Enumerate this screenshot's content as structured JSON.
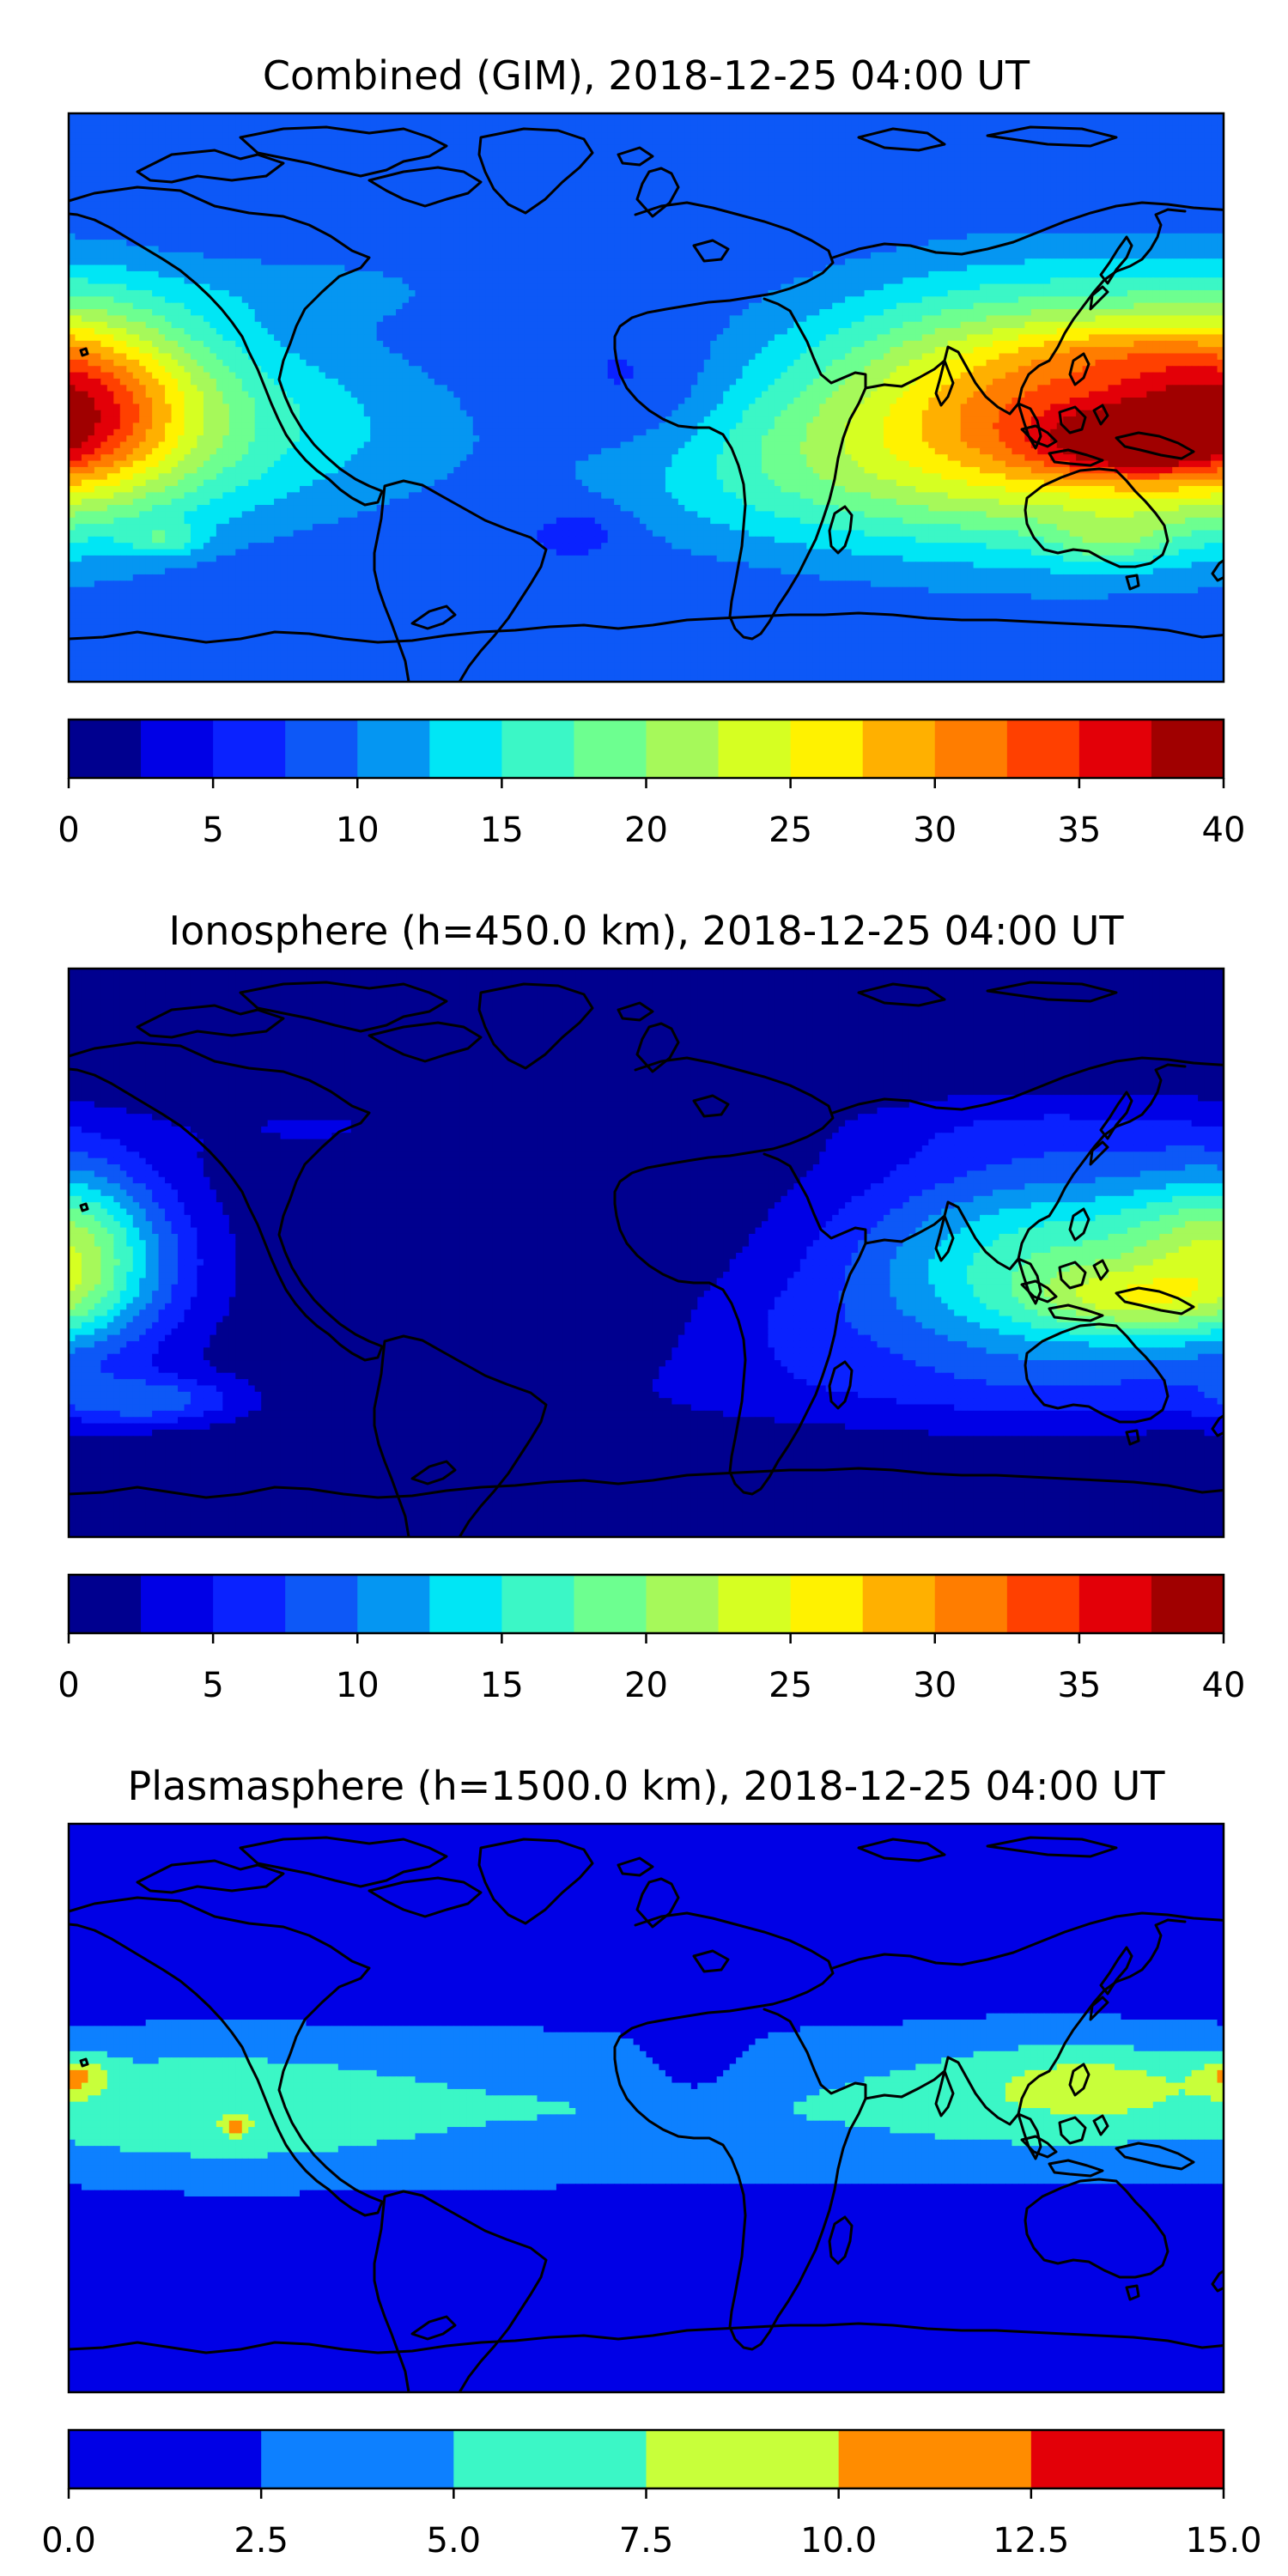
{
  "panels": [
    {
      "title": "Combined (GIM), 2018-12-25 04:00 UT",
      "colorbar": {
        "colors": [
          "#00008f",
          "#0000e6",
          "#0a22ff",
          "#0d58f7",
          "#0596f2",
          "#00e6f5",
          "#3bf7c6",
          "#6dff90",
          "#a6f95a",
          "#d6ff22",
          "#fff200",
          "#ffb000",
          "#ff7d00",
          "#ff4000",
          "#e30008",
          "#a00000"
        ],
        "ticks": [
          "0",
          "5",
          "10",
          "15",
          "20",
          "25",
          "30",
          "35",
          "40"
        ]
      },
      "field": {
        "background_level": 3,
        "blobs": [
          {
            "lon": 130,
            "lat": -5,
            "sx": 80,
            "sy": 38,
            "level": 10
          },
          {
            "lon": 150,
            "lat": -15,
            "sx": 28,
            "sy": 10,
            "level": 4
          },
          {
            "lon": 140,
            "lat": 15,
            "sx": 30,
            "sy": 8,
            "level": 1
          },
          {
            "lon": -175,
            "lat": -2,
            "sx": 35,
            "sy": 30,
            "level": 5
          },
          {
            "lon": -120,
            "lat": -10,
            "sx": 70,
            "sy": 30,
            "level": 2
          },
          {
            "lon": 40,
            "lat": -25,
            "sx": 60,
            "sy": 25,
            "level": 2
          },
          {
            "lon": 145,
            "lat": -45,
            "sx": 18,
            "sy": 8,
            "level": 2
          },
          {
            "lon": -150,
            "lat": -45,
            "sx": 12,
            "sy": 5,
            "level": 2
          },
          {
            "lon": -100,
            "lat": 35,
            "sx": 55,
            "sy": 12,
            "level": 1
          },
          {
            "lon": 0,
            "lat": 0,
            "sx": 25,
            "sy": 20,
            "level": -1
          },
          {
            "lon": -20,
            "lat": -42,
            "sx": 15,
            "sy": 8,
            "level": -1
          }
        ]
      }
    },
    {
      "title": "Ionosphere  (h=450.0 km), 2018-12-25 04:00 UT",
      "colorbar": {
        "colors": [
          "#00008f",
          "#0000e6",
          "#0a22ff",
          "#0d58f7",
          "#0596f2",
          "#00e6f5",
          "#3bf7c6",
          "#6dff90",
          "#a6f95a",
          "#d6ff22",
          "#fff200",
          "#ffb000",
          "#ff7d00",
          "#ff4000",
          "#e30008",
          "#a00000"
        ],
        "ticks": [
          "0",
          "5",
          "10",
          "15",
          "20",
          "25",
          "30",
          "35",
          "40"
        ]
      },
      "field": {
        "background_level": 0,
        "blobs": [
          {
            "lon": 130,
            "lat": -5,
            "sx": 70,
            "sy": 35,
            "level": 7
          },
          {
            "lon": 150,
            "lat": -15,
            "sx": 30,
            "sy": 10,
            "level": 3
          },
          {
            "lon": -178,
            "lat": 0,
            "sx": 28,
            "sy": 28,
            "level": 5
          },
          {
            "lon": -155,
            "lat": -47,
            "sx": 30,
            "sy": 8,
            "level": 3
          },
          {
            "lon": 60,
            "lat": -45,
            "sx": 120,
            "sy": 14,
            "level": 1
          },
          {
            "lon": 40,
            "lat": -25,
            "sx": 40,
            "sy": 18,
            "level": 1
          },
          {
            "lon": 120,
            "lat": 40,
            "sx": 70,
            "sy": 12,
            "level": 1
          },
          {
            "lon": -100,
            "lat": 40,
            "sx": 45,
            "sy": 12,
            "level": 1
          }
        ]
      }
    },
    {
      "title": "Plasmasphere (h=1500.0 km), 2018-12-25 04:00 UT",
      "colorbar": {
        "colors": [
          "#0000e6",
          "#0d80ff",
          "#3bf7c6",
          "#c8ff3a",
          "#ff8c00",
          "#e30008"
        ],
        "ticks": [
          "0.0",
          "2.5",
          "5.0",
          "7.5",
          "10.0",
          "12.5",
          "15.0"
        ]
      },
      "field": {
        "background_level": 0,
        "blobs": [
          {
            "lon": 0,
            "lat": 0,
            "sx": 400,
            "sy": 30,
            "level": 2
          },
          {
            "lon": -135,
            "lat": 0,
            "sx": 55,
            "sy": 22,
            "level": 1
          },
          {
            "lon": 130,
            "lat": 8,
            "sx": 50,
            "sy": 20,
            "level": 1
          },
          {
            "lon": 140,
            "lat": 7,
            "sx": 28,
            "sy": 9,
            "level": 1
          },
          {
            "lon": -178,
            "lat": 10,
            "sx": 10,
            "sy": 6,
            "level": 2
          },
          {
            "lon": -128,
            "lat": -6,
            "sx": 4,
            "sy": 3,
            "level": 2
          },
          {
            "lon": 15,
            "lat": 12,
            "sx": 18,
            "sy": 16,
            "level": -1
          }
        ]
      }
    }
  ]
}
